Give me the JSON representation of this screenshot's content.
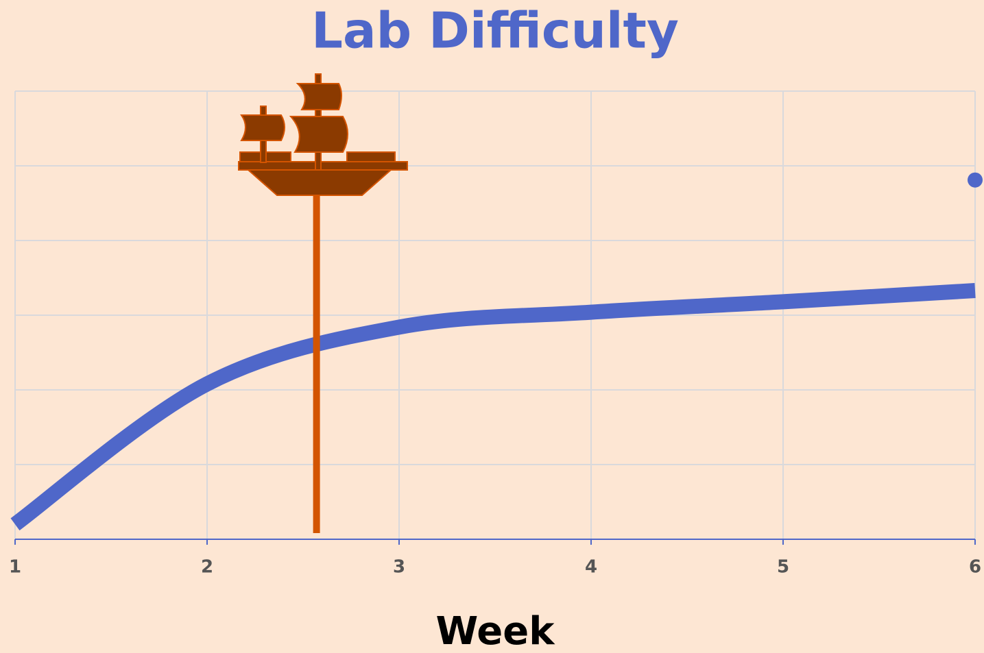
{
  "chart_data": {
    "type": "line",
    "title": "Lab Difficulty",
    "x_label": "Week",
    "x": [
      1,
      2,
      3,
      4,
      5,
      6
    ],
    "series": [
      {
        "color": "#4f67c9",
        "values": [
          0.2,
          2.08,
          2.84,
          3.04,
          3.18,
          3.33
        ]
      },
      {
        "color": "#4f67c9",
        "values": [
          null,
          null,
          null,
          null,
          null,
          4.81
        ]
      }
    ],
    "xlim": [
      1,
      6
    ],
    "xticks": [
      1,
      2,
      3,
      4,
      5,
      6
    ],
    "ylim": [
      0,
      6
    ],
    "yticks": [
      0,
      1,
      2,
      3,
      4,
      5,
      6
    ],
    "grid": true,
    "vertical_line": {
      "x": 2.57,
      "color": "#d35400"
    }
  }
}
